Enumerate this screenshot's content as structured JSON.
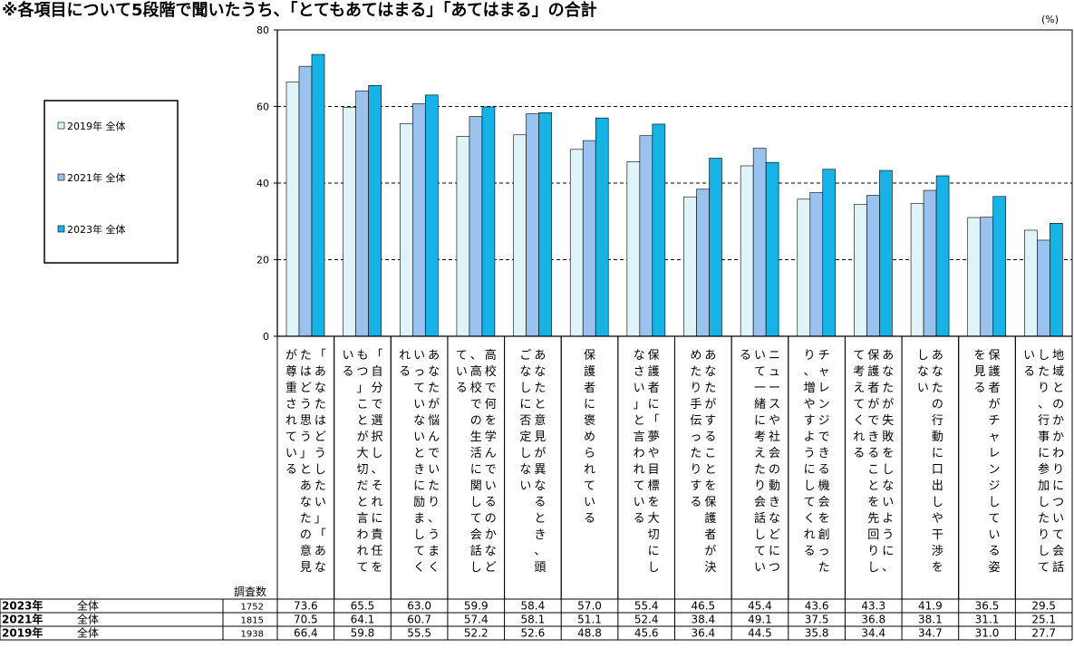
{
  "title": "※各項目について5段階で聞いたうち、「とてもあてはまる」「あてはまる」の合計",
  "unit": "(%)",
  "chart_data": {
    "type": "bar",
    "ylim": [
      0,
      80
    ],
    "yticks": [
      "0",
      "20",
      "40",
      "60",
      "80"
    ],
    "grid": "dashed",
    "legend_position": "left",
    "categories": [
      "「あなたはどうしたい」「あなたはどう思う」とあなたの意見が尊重されている",
      "「自分で選択し、それに責任をもつ」ことが大切だと言われている",
      "あなたが悩んでいたり、うまくいっていないときに励ましてくれる",
      "高校で何を学んでいるのかなど、高校での生活に関して会話している",
      "あなたと意見が異なるとき、頭ごなしに否定しない",
      "保護者に褒められている",
      "保護者に「夢や目標を大切にしなさい」と言われている",
      "あなたがすることを保護者が決めたり手伝ったりする",
      "ニュースや社会の動きなどについて一緒に考えたり会話している",
      "チャレンジできる機会を創ったり、増やすようにしてくれる",
      "あなたが失敗をしないように、保護者ができることを先回りして考えてくれる",
      "あなたの行動に口出しや干渉をしない",
      "保護者がチャレンジしている姿を見る",
      "地域とのかかわりについて会話したり、行事に参加したりしている"
    ],
    "series": [
      {
        "name": "2019年 全体",
        "color": "#dff4f8",
        "values": [
          66.4,
          59.8,
          55.5,
          52.2,
          52.6,
          48.8,
          45.6,
          36.4,
          44.5,
          35.8,
          34.4,
          34.7,
          31.0,
          27.7
        ]
      },
      {
        "name": "2021年 全体",
        "color": "#99c2ee",
        "values": [
          70.5,
          64.1,
          60.7,
          57.4,
          58.1,
          51.1,
          52.4,
          38.4,
          49.1,
          37.5,
          36.8,
          38.1,
          31.1,
          25.1
        ]
      },
      {
        "name": "2023年 全体",
        "color": "#16b3e6",
        "values": [
          73.6,
          65.5,
          63.0,
          59.9,
          58.4,
          57.0,
          55.4,
          46.5,
          45.4,
          43.6,
          43.3,
          41.9,
          36.5,
          29.5
        ]
      }
    ],
    "table": {
      "header": "調査数",
      "rows": [
        {
          "year": "2023年",
          "label": "全体",
          "n": "1752",
          "values": [
            "73.6",
            "65.5",
            "63.0",
            "59.9",
            "58.4",
            "57.0",
            "55.4",
            "46.5",
            "45.4",
            "43.6",
            "43.3",
            "41.9",
            "36.5",
            "29.5"
          ]
        },
        {
          "year": "2021年",
          "label": "全体",
          "n": "1815",
          "values": [
            "70.5",
            "64.1",
            "60.7",
            "57.4",
            "58.1",
            "51.1",
            "52.4",
            "38.4",
            "49.1",
            "37.5",
            "36.8",
            "38.1",
            "31.1",
            "25.1"
          ]
        },
        {
          "year": "2019年",
          "label": "全体",
          "n": "1938",
          "values": [
            "66.4",
            "59.8",
            "55.5",
            "52.2",
            "52.6",
            "48.8",
            "45.6",
            "36.4",
            "44.5",
            "35.8",
            "34.4",
            "34.7",
            "31.0",
            "27.7"
          ]
        }
      ]
    }
  }
}
